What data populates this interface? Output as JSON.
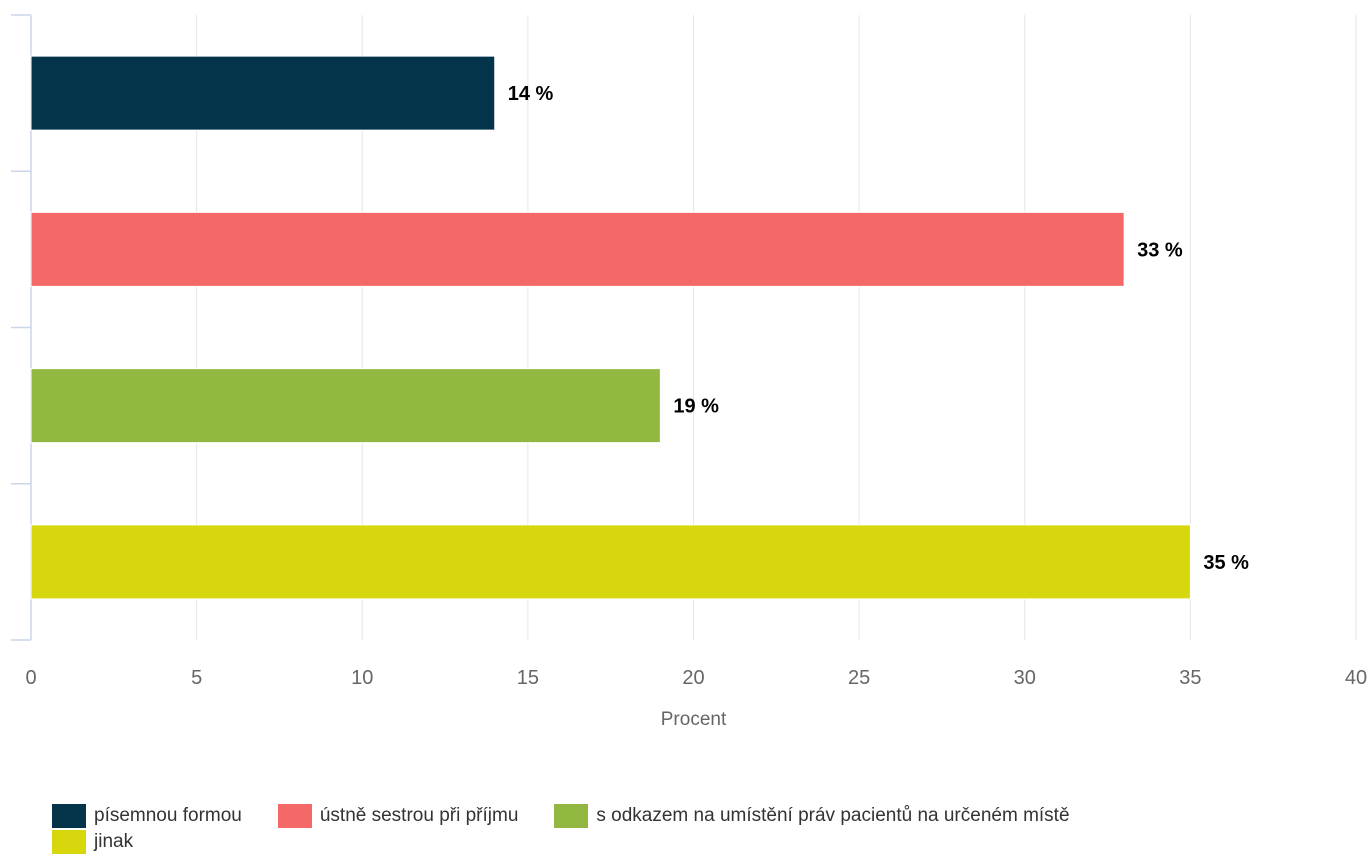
{
  "chart_data": {
    "type": "bar",
    "orientation": "horizontal",
    "categories": [
      "písemnou formou",
      "ústně sestrou při příjmu",
      "s odkazem na umístění práv pacientů na určeném místě",
      "jinak"
    ],
    "values": [
      14,
      33,
      19,
      35
    ],
    "data_labels": [
      "14 %",
      "33 %",
      "19 %",
      "35 %"
    ],
    "colors": [
      "#04344a",
      "#f56868",
      "#93b842",
      "#d7d70e"
    ],
    "xlabel": "Procent",
    "ylabel": "",
    "xlim": [
      0,
      40
    ],
    "xticks": [
      0,
      5,
      10,
      15,
      20,
      25,
      30,
      35,
      40
    ],
    "xtick_labels": [
      "0",
      "5",
      "10",
      "15",
      "20",
      "25",
      "30",
      "35",
      "40"
    ],
    "grid": true,
    "legend_position": "bottom-left",
    "legend": [
      "písemnou formou",
      "ústně sestrou při příjmu",
      "s odkazem na umístění práv pacientů na určeném místě",
      "jinak"
    ]
  },
  "legend_rows": [
    [
      0,
      1,
      2
    ],
    [
      3
    ]
  ]
}
